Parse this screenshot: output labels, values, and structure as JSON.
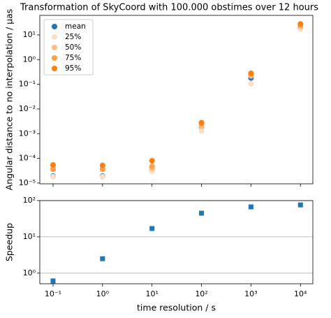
{
  "chart_data": [
    {
      "type": "scatter",
      "title": "Transformation of SkyCoord with 100.000 obstimes over 12 hours",
      "y_label": "Angular distance to no interpolation / µas",
      "x": [
        0.1,
        1,
        10,
        100,
        1000,
        10000
      ],
      "series": [
        {
          "name": "mean",
          "color": "#1f77b4",
          "values": [
            1.9e-05,
            1.9e-05,
            3.2e-05,
            0.0019,
            0.18,
            19
          ]
        },
        {
          "name": "25%",
          "color": "#ffdfc3",
          "values": [
            1.8e-05,
            1.8e-05,
            3e-05,
            0.0013,
            0.107,
            17
          ]
        },
        {
          "name": "50%",
          "color": "#ffbf86",
          "values": [
            3.9e-05,
            3.8e-05,
            4e-05,
            0.002,
            0.22,
            22
          ]
        },
        {
          "name": "75%",
          "color": "#ff9f4a",
          "values": [
            3.6e-05,
            3.6e-05,
            4.7e-05,
            0.0025,
            0.25,
            25
          ]
        },
        {
          "name": "95%",
          "color": "#ff7f0e",
          "values": [
            5.4e-05,
            5.2e-05,
            8e-05,
            0.0028,
            0.28,
            28
          ]
        }
      ],
      "xscale": "log",
      "yscale": "log",
      "xlim": [
        0.054,
        17800
      ],
      "xticks": [
        0.1,
        1,
        10,
        100,
        1000,
        10000
      ],
      "ylim": [
        9.3e-06,
        62
      ],
      "yticks": [
        {
          "value": 1e-05,
          "label": "10⁻⁵"
        },
        {
          "value": 0.0001,
          "label": "10⁻⁴"
        },
        {
          "value": 0.001,
          "label": "10⁻³"
        },
        {
          "value": 0.01,
          "label": "10⁻²"
        },
        {
          "value": 0.1,
          "label": "10⁻¹"
        },
        {
          "value": 1,
          "label": "10⁰"
        },
        {
          "value": 10,
          "label": "10¹"
        }
      ],
      "legend": "upper left",
      "grid": false,
      "marker": "circle"
    },
    {
      "type": "scatter",
      "x_label": "time resolution / s",
      "y_label": "Speedup",
      "x": [
        0.1,
        1,
        10,
        100,
        1000,
        10000
      ],
      "series": [
        {
          "color": "#1f77b4",
          "values": [
            0.61,
            2.5,
            17,
            45,
            67,
            76
          ]
        }
      ],
      "xscale": "log",
      "yscale": "log",
      "xlim": [
        0.054,
        17800
      ],
      "xticks": [
        {
          "value": 0.1,
          "label": "10⁻¹"
        },
        {
          "value": 1,
          "label": "10⁰"
        },
        {
          "value": 10,
          "label": "10¹"
        },
        {
          "value": 100,
          "label": "10²"
        },
        {
          "value": 1000,
          "label": "10³"
        },
        {
          "value": 10000,
          "label": "10⁴"
        }
      ],
      "ylim": [
        0.51,
        100
      ],
      "yticks": [
        {
          "value": 1,
          "label": "10⁰"
        },
        {
          "value": 10,
          "label": "10¹"
        },
        {
          "value": 100,
          "label": "10²"
        }
      ],
      "grid": true,
      "marker": "square"
    }
  ]
}
